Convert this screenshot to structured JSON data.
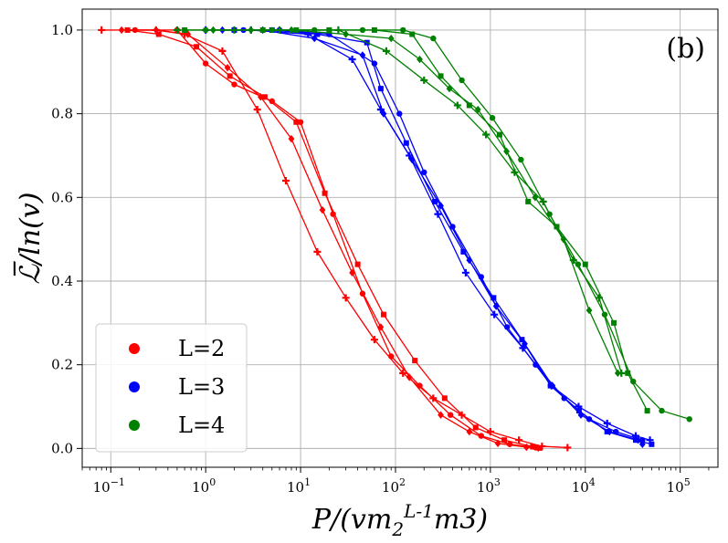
{
  "chart_data": {
    "type": "line",
    "panel_label": "(b)",
    "xlabel": "P/(vm_2^{L-1}m_3)",
    "ylabel": "ℒ̅/ln(v)",
    "xscale": "log",
    "xlim": [
      0.05,
      250000
    ],
    "ylim": [
      -0.045,
      1.05
    ],
    "xticks": [
      {
        "value": 0.1,
        "base": "10",
        "exp": "−1"
      },
      {
        "value": 1,
        "base": "10",
        "exp": "0"
      },
      {
        "value": 10,
        "base": "10",
        "exp": "1"
      },
      {
        "value": 100,
        "base": "10",
        "exp": "2"
      },
      {
        "value": 1000,
        "base": "10",
        "exp": "3"
      },
      {
        "value": 10000,
        "base": "10",
        "exp": "4"
      },
      {
        "value": 100000,
        "base": "10",
        "exp": "5"
      }
    ],
    "yticks": [
      {
        "value": 0.0,
        "label": "0.0"
      },
      {
        "value": 0.2,
        "label": "0.2"
      },
      {
        "value": 0.4,
        "label": "0.4"
      },
      {
        "value": 0.6,
        "label": "0.6"
      },
      {
        "value": 0.8,
        "label": "0.8"
      },
      {
        "value": 1.0,
        "label": "1.0"
      }
    ],
    "grid": true,
    "legend_position": "lower-left",
    "legend": [
      {
        "label": "L=2",
        "color": "#ff0000"
      },
      {
        "label": "L=3",
        "color": "#0000ff"
      },
      {
        "label": "L=4",
        "color": "#008000"
      }
    ],
    "series": [
      {
        "name": "L=2",
        "color": "#ff0000",
        "marker": "plus",
        "x": [
          0.08,
          0.3,
          0.6,
          1.5,
          3.5,
          7,
          15,
          30,
          60,
          120,
          250,
          500,
          1000,
          2000,
          3500,
          6500
        ],
        "y": [
          1.0,
          1.0,
          0.99,
          0.95,
          0.81,
          0.64,
          0.47,
          0.36,
          0.26,
          0.18,
          0.12,
          0.08,
          0.04,
          0.02,
          0.005,
          0.002
        ]
      },
      {
        "name": "L=2",
        "color": "#ff0000",
        "marker": "diamond",
        "x": [
          0.13,
          0.3,
          0.65,
          1.7,
          3.8,
          8,
          17,
          35,
          70,
          140,
          300,
          600,
          1200,
          2400,
          3200
        ],
        "y": [
          1.0,
          1.0,
          0.99,
          0.91,
          0.84,
          0.74,
          0.57,
          0.42,
          0.29,
          0.17,
          0.08,
          0.04,
          0.012,
          0.003,
          0.001
        ]
      },
      {
        "name": "L=2",
        "color": "#ff0000",
        "marker": "square",
        "x": [
          0.15,
          0.32,
          0.8,
          1.8,
          4.2,
          9,
          18,
          40,
          75,
          160,
          330,
          700,
          1400,
          2800,
          3300
        ],
        "y": [
          1.0,
          0.99,
          0.96,
          0.89,
          0.84,
          0.78,
          0.61,
          0.44,
          0.32,
          0.21,
          0.12,
          0.05,
          0.02,
          0.004,
          0.001
        ]
      },
      {
        "name": "L=2",
        "color": "#ff0000",
        "marker": "circle",
        "x": [
          0.18,
          0.5,
          1.0,
          2.0,
          5,
          10,
          22,
          45,
          90,
          180,
          380,
          800,
          1600,
          3000
        ],
        "y": [
          1.0,
          1.0,
          0.92,
          0.87,
          0.83,
          0.78,
          0.56,
          0.37,
          0.22,
          0.15,
          0.08,
          0.03,
          0.01,
          0.002
        ]
      },
      {
        "name": "L=3",
        "color": "#0000ff",
        "marker": "plus",
        "x": [
          1.0,
          3.0,
          12,
          35,
          70,
          140,
          280,
          550,
          1100,
          2200,
          4400,
          8500,
          17000,
          34000,
          48000
        ],
        "y": [
          1.0,
          1.0,
          0.99,
          0.93,
          0.81,
          0.7,
          0.56,
          0.42,
          0.32,
          0.24,
          0.15,
          0.1,
          0.06,
          0.03,
          0.02
        ]
      },
      {
        "name": "L=3",
        "color": "#0000ff",
        "marker": "diamond",
        "x": [
          1.5,
          4.0,
          14,
          45,
          75,
          150,
          300,
          600,
          1150,
          2300,
          4500,
          9000,
          18000,
          36000,
          40000
        ],
        "y": [
          1.0,
          1.0,
          0.98,
          0.94,
          0.8,
          0.69,
          0.58,
          0.45,
          0.34,
          0.25,
          0.15,
          0.08,
          0.04,
          0.02,
          0.01
        ]
      },
      {
        "name": "L=3",
        "color": "#0000ff",
        "marker": "square",
        "x": [
          2.0,
          5.0,
          15,
          50,
          70,
          130,
          260,
          520,
          1080,
          2150,
          4300,
          8600,
          17000,
          34000,
          50000
        ],
        "y": [
          1.0,
          1.0,
          0.99,
          0.97,
          0.86,
          0.73,
          0.59,
          0.47,
          0.36,
          0.26,
          0.15,
          0.09,
          0.04,
          0.02,
          0.01
        ]
      },
      {
        "name": "L=3",
        "color": "#0000ff",
        "marker": "circle",
        "x": [
          2.5,
          6.0,
          20,
          60,
          110,
          200,
          400,
          800,
          1500,
          3000,
          6000,
          11000,
          21000,
          40000
        ],
        "y": [
          1.0,
          1.0,
          0.99,
          0.92,
          0.8,
          0.66,
          0.53,
          0.41,
          0.29,
          0.2,
          0.12,
          0.07,
          0.04,
          0.02
        ]
      },
      {
        "name": "L=4",
        "color": "#008000",
        "marker": "plus",
        "x": [
          0.5,
          2.0,
          6,
          25,
          80,
          200,
          450,
          900,
          1800,
          3600,
          7500,
          14000,
          24000
        ],
        "y": [
          1.0,
          1.0,
          1.0,
          1.0,
          0.95,
          0.88,
          0.82,
          0.75,
          0.66,
          0.59,
          0.45,
          0.36,
          0.18
        ]
      },
      {
        "name": "L=4",
        "color": "#008000",
        "marker": "diamond",
        "x": [
          1.2,
          3.0,
          8,
          30,
          90,
          180,
          370,
          740,
          1480,
          2960,
          5900,
          11000,
          22000
        ],
        "y": [
          1.0,
          1.0,
          1.0,
          0.99,
          0.98,
          0.93,
          0.86,
          0.81,
          0.71,
          0.6,
          0.5,
          0.33,
          0.18
        ]
      },
      {
        "name": "L=4",
        "color": "#008000",
        "marker": "square",
        "x": [
          0.6,
          4.0,
          9,
          20,
          60,
          150,
          300,
          600,
          1250,
          2500,
          5000,
          10000,
          20000,
          28000,
          45000
        ],
        "y": [
          1.0,
          1.0,
          1.0,
          1.0,
          1.0,
          0.99,
          0.89,
          0.82,
          0.75,
          0.59,
          0.53,
          0.44,
          0.3,
          0.18,
          0.09
        ]
      },
      {
        "name": "L=4",
        "color": "#008000",
        "marker": "circle",
        "x": [
          1.0,
          5.0,
          14,
          45,
          120,
          250,
          500,
          1050,
          2100,
          4200,
          8400,
          16000,
          32000,
          64000,
          125000
        ],
        "y": [
          1.0,
          1.0,
          1.0,
          1.0,
          1.0,
          0.98,
          0.88,
          0.79,
          0.69,
          0.56,
          0.44,
          0.32,
          0.16,
          0.09,
          0.07
        ]
      }
    ]
  }
}
